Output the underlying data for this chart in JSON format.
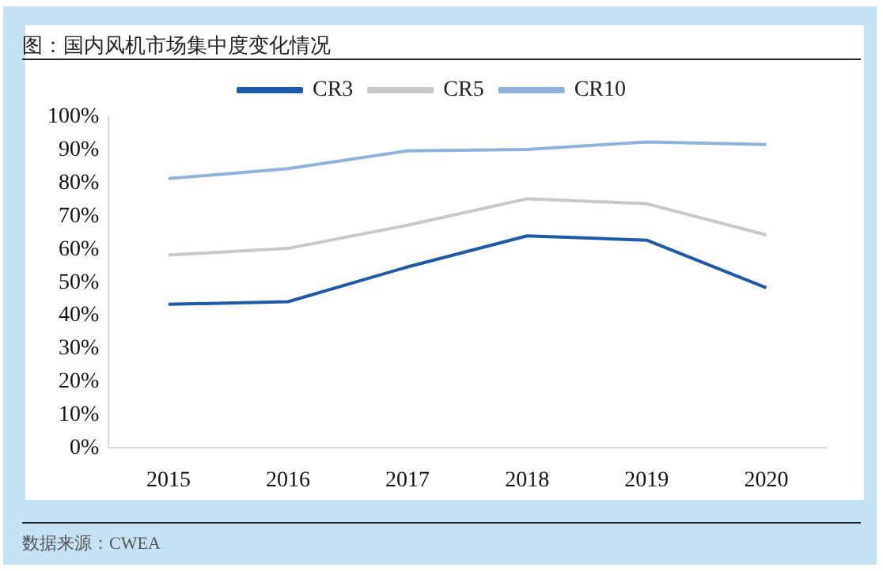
{
  "chart_data": {
    "type": "line",
    "title": "图：国内风机市场集中度变化情况",
    "categories": [
      "2015",
      "2016",
      "2017",
      "2018",
      "2019",
      "2020"
    ],
    "series": [
      {
        "name": "CR3",
        "color": "#1f5aa6",
        "values": [
          43.4,
          44.2,
          54.7,
          64.1,
          62.8,
          48.4
        ]
      },
      {
        "name": "CR5",
        "color": "#c8c8c8",
        "values": [
          58.3,
          60.3,
          67.3,
          75.3,
          73.8,
          64.4
        ]
      },
      {
        "name": "CR10",
        "color": "#8fb2dc",
        "values": [
          81.4,
          84.4,
          89.8,
          90.2,
          92.5,
          91.7
        ]
      }
    ],
    "ylim": [
      0,
      100
    ],
    "yticks": [
      {
        "value": 0,
        "label": "0%"
      },
      {
        "value": 10,
        "label": "10%"
      },
      {
        "value": 20,
        "label": "20%"
      },
      {
        "value": 30,
        "label": "30%"
      },
      {
        "value": 40,
        "label": "40%"
      },
      {
        "value": 50,
        "label": "50%"
      },
      {
        "value": 60,
        "label": "60%"
      },
      {
        "value": 70,
        "label": "70%"
      },
      {
        "value": 80,
        "label": "80%"
      },
      {
        "value": 90,
        "label": "90%"
      },
      {
        "value": 100,
        "label": "100%"
      }
    ],
    "grid": false,
    "legend": "top",
    "marker": "none",
    "line_style": "solid",
    "annotations": [
      "数据来源：CWEA"
    ]
  }
}
